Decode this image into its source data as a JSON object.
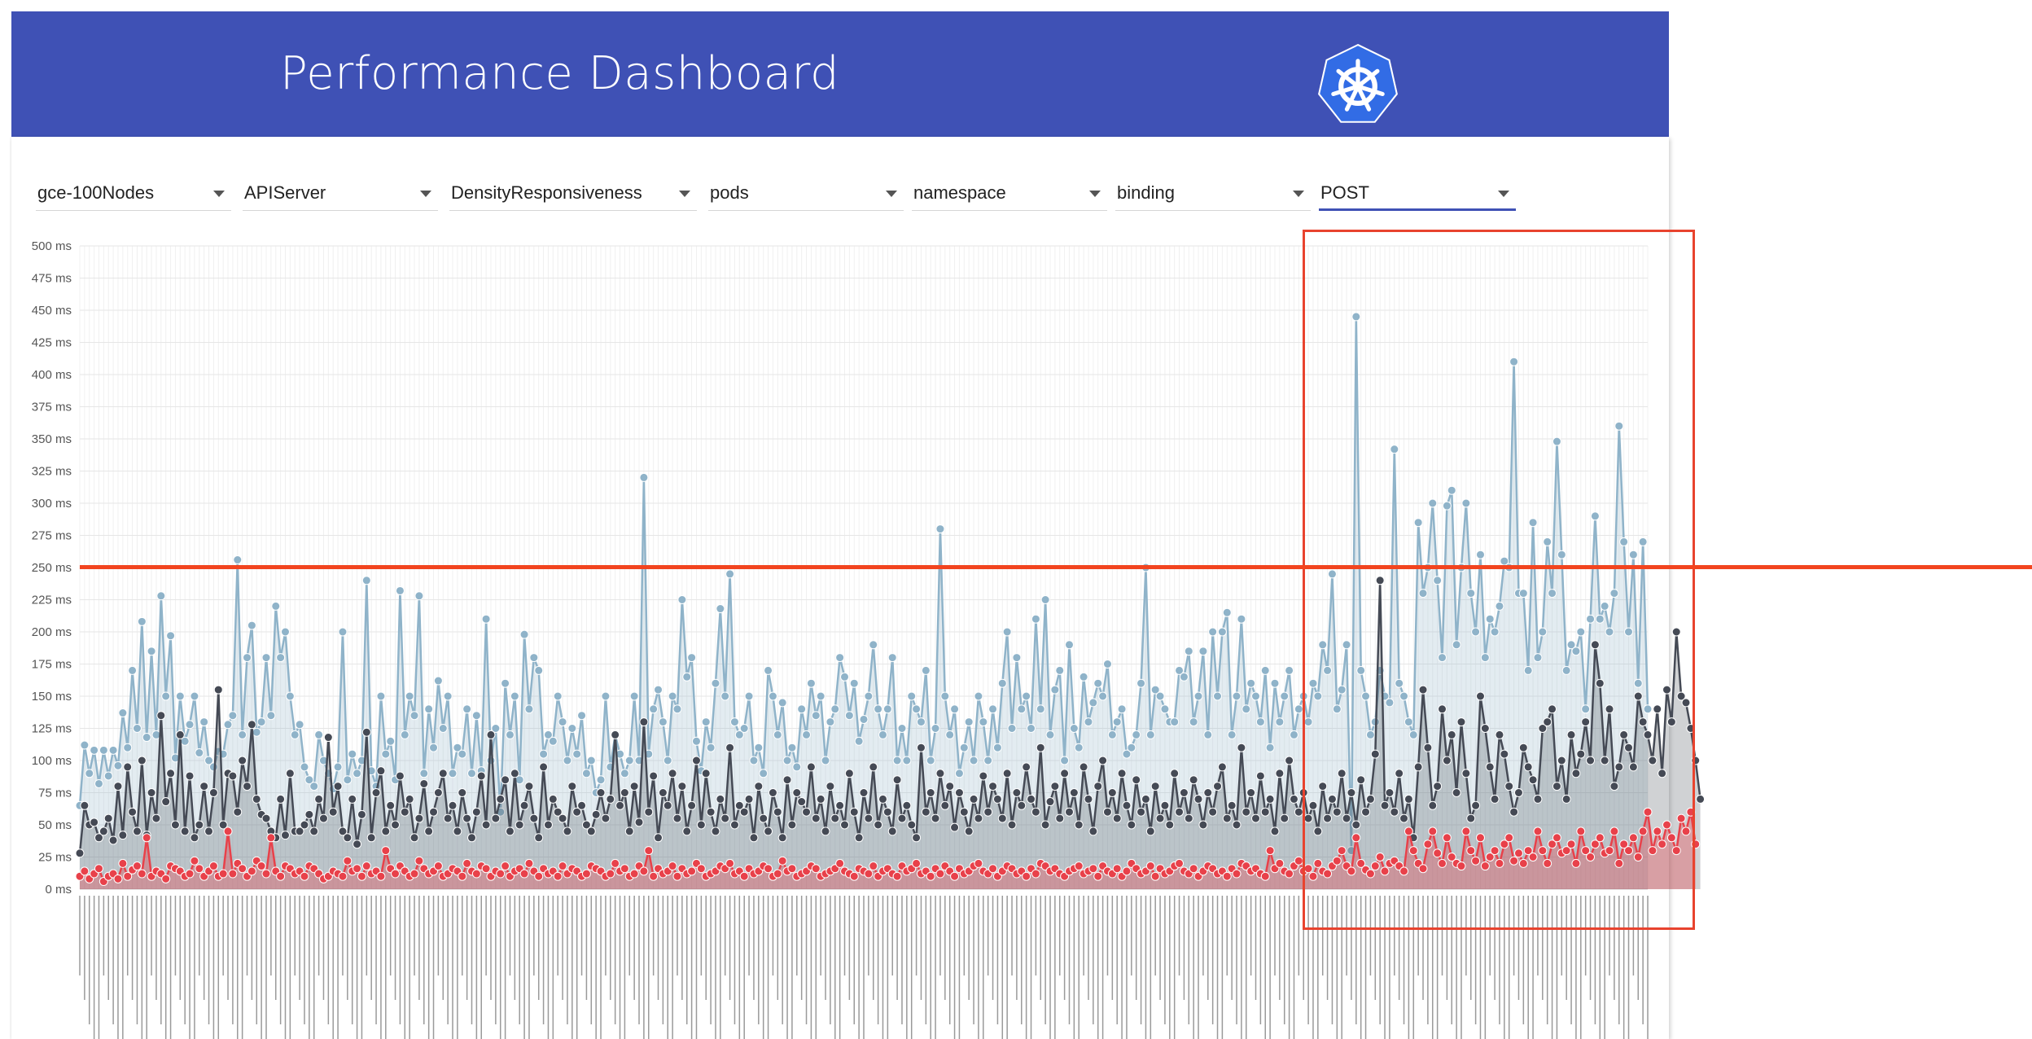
{
  "app": {
    "title": "Performance Dashboard",
    "logo_icon": "kubernetes-helm-logo",
    "header_color": "#3f51b5"
  },
  "filters": [
    {
      "id": "job",
      "value": "gce-100Nodes"
    },
    {
      "id": "component",
      "value": "APIServer"
    },
    {
      "id": "test",
      "value": "DensityResponsiveness"
    },
    {
      "id": "resource",
      "value": "pods"
    },
    {
      "id": "scope",
      "value": "namespace"
    },
    {
      "id": "subresource",
      "value": "binding"
    },
    {
      "id": "verb",
      "value": "POST"
    }
  ],
  "chart_data": {
    "type": "area",
    "ylim": [
      0,
      500
    ],
    "y_tick_labels": [
      "500 ms",
      "475 ms",
      "450 ms",
      "425 ms",
      "400 ms",
      "375 ms",
      "350 ms",
      "325 ms",
      "300 ms",
      "275 ms",
      "250 ms",
      "225 ms",
      "200 ms",
      "175 ms",
      "150 ms",
      "125 ms",
      "100 ms",
      "75 ms",
      "50 ms",
      "25 ms",
      "0 ms"
    ],
    "x_tick_labels": "build ids (unreadable, rotated)",
    "grid": true,
    "series": [
      {
        "name": "",
        "color": "#8fb3c9",
        "values": [
          65,
          112,
          90,
          108,
          82,
          108,
          88,
          108,
          96,
          137,
          110,
          170,
          125,
          208,
          118,
          185,
          120,
          228,
          150,
          197,
          102,
          150,
          115,
          128,
          150,
          106,
          130,
          100,
          95,
          107,
          105,
          128,
          135,
          256,
          120,
          180,
          205,
          122,
          130,
          180,
          135,
          220,
          180,
          200,
          150,
          120,
          128,
          95,
          85,
          80,
          120,
          100,
          90,
          78,
          95,
          200,
          85,
          105,
          90,
          100,
          240,
          92,
          80,
          150,
          105,
          115,
          85,
          232,
          120,
          150,
          135,
          228,
          90,
          140,
          110,
          162,
          125,
          150,
          90,
          110,
          105,
          140,
          90,
          135,
          92,
          210,
          100,
          125,
          60,
          160,
          120,
          150,
          85,
          198,
          140,
          180,
          170,
          105,
          120,
          115,
          150,
          130,
          100,
          125,
          105,
          135,
          90,
          100,
          75,
          85,
          150,
          95,
          120,
          105,
          90,
          100,
          150,
          100,
          320,
          105,
          140,
          155,
          130,
          100,
          150,
          140,
          225,
          165,
          180,
          115,
          92,
          130,
          110,
          160,
          218,
          150,
          245,
          130,
          120,
          125,
          150,
          100,
          110,
          90,
          170,
          150,
          120,
          145,
          100,
          110,
          95,
          140,
          120,
          160,
          135,
          150,
          100,
          130,
          140,
          180,
          165,
          135,
          160,
          115,
          132,
          150,
          190,
          140,
          120,
          140,
          180,
          100,
          125,
          100,
          150,
          140,
          130,
          170,
          100,
          125,
          280,
          150,
          120,
          140,
          90,
          110,
          130,
          100,
          150,
          130,
          100,
          140,
          110,
          160,
          200,
          125,
          180,
          140,
          150,
          125,
          210,
          140,
          225,
          120,
          155,
          170,
          100,
          190,
          125,
          110,
          165,
          130,
          145,
          160,
          150,
          175,
          120,
          130,
          140,
          105,
          110,
          120,
          160,
          250,
          120,
          155,
          150,
          140,
          130,
          130,
          170,
          165,
          185,
          130,
          150,
          185,
          120,
          200,
          150,
          200,
          215,
          120,
          150,
          210,
          140,
          160,
          150,
          130,
          170,
          110,
          160,
          130,
          150,
          170,
          120,
          140,
          150,
          130,
          160,
          150,
          190,
          170,
          245,
          140,
          155,
          190,
          30,
          445,
          170,
          150,
          120,
          130,
          170,
          150,
          145,
          342,
          160,
          150,
          130,
          120,
          285,
          230,
          250,
          300,
          240,
          180,
          298,
          310,
          190,
          250,
          300,
          230,
          200,
          260,
          180,
          210,
          200,
          220,
          255,
          250,
          410,
          230,
          230,
          170,
          285,
          180,
          200,
          270,
          230,
          348,
          260,
          170,
          190,
          185,
          200,
          140,
          210,
          290,
          210,
          220,
          200,
          230,
          360,
          270,
          200,
          260,
          160,
          270,
          140
        ]
      },
      {
        "name": "",
        "color": "#454a55",
        "values": [
          28,
          65,
          50,
          52,
          40,
          45,
          55,
          38,
          80,
          42,
          95,
          60,
          45,
          100,
          42,
          75,
          55,
          135,
          68,
          90,
          50,
          120,
          45,
          88,
          40,
          50,
          80,
          45,
          75,
          155,
          50,
          90,
          88,
          60,
          100,
          80,
          128,
          70,
          58,
          55,
          45,
          40,
          70,
          42,
          90,
          45,
          45,
          50,
          58,
          45,
          70,
          55,
          118,
          60,
          80,
          45,
          40,
          70,
          35,
          58,
          122,
          40,
          75,
          92,
          45,
          65,
          50,
          88,
          60,
          70,
          40,
          55,
          82,
          45,
          60,
          75,
          90,
          55,
          65,
          45,
          75,
          55,
          40,
          60,
          88,
          50,
          120,
          55,
          70,
          85,
          45,
          90,
          50,
          65,
          80,
          55,
          40,
          95,
          50,
          70,
          60,
          55,
          45,
          80,
          60,
          65,
          50,
          45,
          58,
          75,
          55,
          70,
          120,
          65,
          75,
          45,
          80,
          52,
          130,
          60,
          88,
          40,
          75,
          65,
          90,
          55,
          80,
          45,
          65,
          100,
          50,
          90,
          60,
          45,
          70,
          55,
          110,
          50,
          65,
          60,
          70,
          40,
          80,
          55,
          45,
          75,
          60,
          40,
          85,
          50,
          75,
          68,
          60,
          95,
          55,
          70,
          45,
          80,
          55,
          65,
          50,
          90,
          60,
          40,
          75,
          55,
          95,
          50,
          70,
          60,
          45,
          85,
          55,
          65,
          50,
          40,
          110,
          60,
          75,
          55,
          90,
          65,
          80,
          48,
          75,
          60,
          45,
          70,
          55,
          88,
          60,
          80,
          70,
          55,
          90,
          50,
          75,
          65,
          95,
          70,
          60,
          110,
          50,
          68,
          80,
          55,
          90,
          60,
          75,
          50,
          95,
          70,
          45,
          80,
          100,
          60,
          75,
          55,
          90,
          65,
          50,
          85,
          60,
          70,
          45,
          80,
          55,
          65,
          50,
          90,
          60,
          75,
          55,
          85,
          70,
          50,
          75,
          60,
          80,
          95,
          55,
          65,
          50,
          110,
          60,
          75,
          55,
          88,
          60,
          70,
          45,
          90,
          55,
          100,
          70,
          60,
          75,
          55,
          65,
          45,
          80,
          55,
          70,
          60,
          90,
          55,
          75,
          50,
          85,
          60,
          70,
          105,
          240,
          65,
          75,
          60,
          90,
          55,
          70,
          40,
          95,
          155,
          110,
          65,
          80,
          140,
          100,
          120,
          75,
          130,
          90,
          55,
          65,
          150,
          125,
          95,
          70,
          120,
          105,
          80,
          60,
          75,
          110,
          95,
          85,
          70,
          125,
          130,
          140,
          80,
          100,
          70,
          120,
          90,
          105,
          130,
          100,
          190,
          160,
          100,
          140,
          80,
          95,
          120,
          110,
          95,
          150,
          130,
          120,
          100,
          140,
          90,
          155,
          130,
          200,
          150,
          145,
          125,
          100,
          70
        ]
      },
      {
        "name": "",
        "color": "#e8414a",
        "values": [
          10,
          14,
          8,
          12,
          16,
          6,
          10,
          12,
          8,
          20,
          10,
          15,
          18,
          12,
          40,
          10,
          14,
          12,
          8,
          18,
          16,
          14,
          10,
          12,
          22,
          16,
          10,
          14,
          18,
          10,
          12,
          45,
          12,
          20,
          16,
          10,
          14,
          22,
          18,
          12,
          40,
          14,
          10,
          18,
          16,
          12,
          14,
          10,
          18,
          16,
          12,
          8,
          10,
          14,
          12,
          10,
          22,
          14,
          16,
          10,
          18,
          12,
          14,
          10,
          30,
          16,
          12,
          18,
          14,
          10,
          12,
          22,
          16,
          12,
          14,
          18,
          10,
          12,
          16,
          14,
          10,
          20,
          14,
          12,
          18,
          16,
          10,
          14,
          12,
          18,
          10,
          14,
          16,
          12,
          20,
          14,
          10,
          16,
          12,
          14,
          10,
          18,
          12,
          16,
          14,
          10,
          12,
          18,
          16,
          14,
          10,
          12,
          20,
          14,
          16,
          10,
          12,
          18,
          14,
          30,
          10,
          16,
          12,
          14,
          18,
          10,
          16,
          12,
          14,
          20,
          16,
          10,
          12,
          14,
          18,
          16,
          20,
          12,
          14,
          10,
          16,
          12,
          14,
          18,
          16,
          10,
          12,
          22,
          14,
          16,
          10,
          12,
          14,
          18,
          16,
          10,
          12,
          14,
          16,
          20,
          14,
          12,
          10,
          16,
          14,
          12,
          18,
          10,
          14,
          16,
          12,
          10,
          18,
          14,
          16,
          20,
          12,
          14,
          10,
          16,
          12,
          18,
          14,
          10,
          16,
          12,
          14,
          18,
          20,
          14,
          12,
          16,
          10,
          14,
          18,
          16,
          12,
          14,
          10,
          16,
          12,
          20,
          18,
          14,
          16,
          12,
          10,
          14,
          16,
          18,
          12,
          14,
          16,
          10,
          18,
          14,
          12,
          16,
          10,
          14,
          20,
          16,
          12,
          14,
          18,
          10,
          16,
          12,
          14,
          18,
          20,
          14,
          12,
          16,
          10,
          14,
          18,
          16,
          12,
          14,
          10,
          16,
          12,
          20,
          18,
          14,
          16,
          12,
          10,
          30,
          16,
          20,
          14,
          12,
          18,
          22,
          14,
          16,
          10,
          20,
          14,
          12,
          18,
          22,
          30,
          18,
          14,
          40,
          20,
          15,
          12,
          18,
          25,
          14,
          20,
          22,
          18,
          14,
          45,
          30,
          20,
          16,
          35,
          45,
          28,
          20,
          40,
          25,
          20,
          18,
          45,
          30,
          22,
          40,
          18,
          25,
          30,
          20,
          35,
          40,
          22,
          28,
          20,
          30,
          25,
          45,
          30,
          20,
          35,
          40,
          28,
          30,
          35,
          20,
          45,
          30,
          25,
          35,
          40,
          28,
          30,
          45,
          20,
          35,
          30,
          40,
          25,
          45,
          60,
          30,
          45,
          35,
          50,
          40,
          30,
          55,
          45,
          60,
          35
        ]
      }
    ]
  }
}
